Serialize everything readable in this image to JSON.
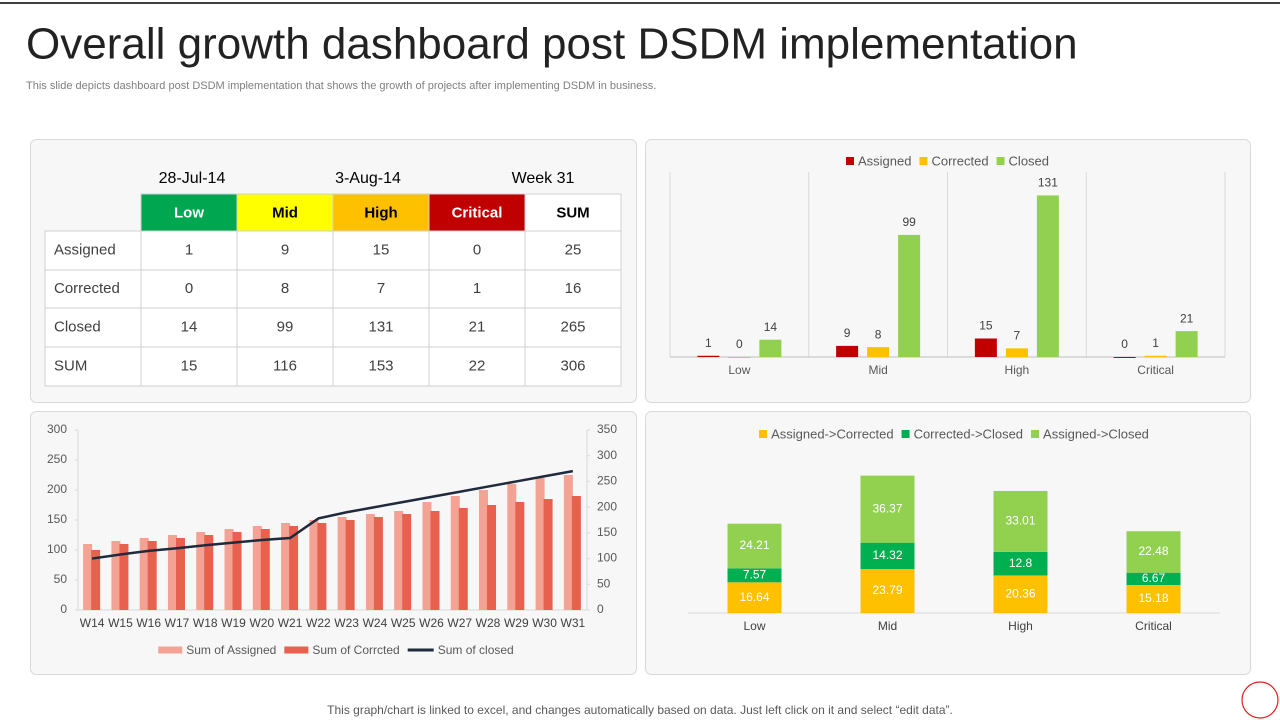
{
  "header": {
    "title": "Overall growth dashboard post DSDM implementation",
    "subtitle": "This slide depicts dashboard post DSDM implementation that shows the growth of projects after implementing DSDM in business."
  },
  "table": {
    "dates": [
      "28-Jul-14",
      "3-Aug-14",
      "Week 31"
    ],
    "columns": [
      "Low",
      "Mid",
      "High",
      "Critical",
      "SUM"
    ],
    "column_colors": [
      "#00a650",
      "#ffff00",
      "#ffc000",
      "#c00000",
      null
    ],
    "column_text_colors": [
      "#ffffff",
      "#000000",
      "#000000",
      "#ffffff",
      "#000000"
    ],
    "rows": [
      {
        "label": "Assigned",
        "cells": [
          1,
          9,
          15,
          0,
          25
        ]
      },
      {
        "label": "Corrected",
        "cells": [
          0,
          8,
          7,
          1,
          16
        ]
      },
      {
        "label": "Closed",
        "cells": [
          14,
          99,
          131,
          21,
          265
        ]
      },
      {
        "label": "SUM",
        "cells": [
          15,
          116,
          153,
          22,
          306
        ]
      }
    ]
  },
  "chart_data": [
    {
      "type": "bar",
      "categories": [
        "Low",
        "Mid",
        "High",
        "Critical"
      ],
      "series": [
        {
          "name": "Assigned",
          "color": "#c00000",
          "values": [
            1,
            9,
            15,
            0
          ]
        },
        {
          "name": "Corrected",
          "color": "#ffc000",
          "values": [
            0,
            8,
            7,
            1
          ]
        },
        {
          "name": "Closed",
          "color": "#92d050",
          "values": [
            14,
            99,
            131,
            21
          ]
        }
      ],
      "ylim": [
        0,
        150
      ],
      "legend": "top"
    },
    {
      "type": "combo",
      "categories": [
        "W14",
        "W15",
        "W16",
        "W17",
        "W18",
        "W19",
        "W20",
        "W21",
        "W22",
        "W23",
        "W24",
        "W25",
        "W26",
        "W27",
        "W28",
        "W29",
        "W30",
        "W31"
      ],
      "series": [
        {
          "name": "Sum of Assigned",
          "color": "#f4a294",
          "kind": "bar",
          "values": [
            110,
            115,
            120,
            125,
            130,
            135,
            140,
            145,
            150,
            155,
            160,
            165,
            180,
            190,
            200,
            210,
            220,
            225
          ]
        },
        {
          "name": "Sum of Corrcted",
          "color": "#e8614f",
          "kind": "bar",
          "values": [
            100,
            110,
            115,
            120,
            125,
            130,
            135,
            140,
            145,
            150,
            155,
            160,
            165,
            170,
            175,
            180,
            185,
            190
          ]
        },
        {
          "name": "Sum of closed",
          "color": "#1f2a3c",
          "kind": "line",
          "axis": "y2",
          "values": [
            100,
            108,
            115,
            120,
            126,
            131,
            136,
            140,
            178,
            190,
            200,
            210,
            220,
            230,
            240,
            250,
            260,
            270
          ]
        }
      ],
      "ylim": [
        0,
        300
      ],
      "yticks": [
        0,
        50,
        100,
        150,
        200,
        250,
        300
      ],
      "y2lim": [
        0,
        350
      ],
      "y2ticks": [
        0,
        50,
        100,
        150,
        200,
        250,
        300,
        350
      ],
      "legend": "bottom"
    },
    {
      "type": "stacked_bar",
      "categories": [
        "Low",
        "Mid",
        "High",
        "Critical"
      ],
      "series": [
        {
          "name": "Assigned->Corrected",
          "color": "#ffc000",
          "values": [
            16.64,
            23.79,
            20.36,
            15.18
          ]
        },
        {
          "name": "Corrected->Closed",
          "color": "#00b050",
          "values": [
            7.57,
            14.32,
            12.8,
            6.67
          ]
        },
        {
          "name": "Assigned->Closed",
          "color": "#92d050",
          "values": [
            24.21,
            36.37,
            33.01,
            22.48
          ]
        }
      ],
      "ylim": [
        0,
        90
      ],
      "legend": "top"
    }
  ],
  "footer": "This graph/chart is linked to excel, and changes automatically based on data. Just left click on it and select “edit data”."
}
